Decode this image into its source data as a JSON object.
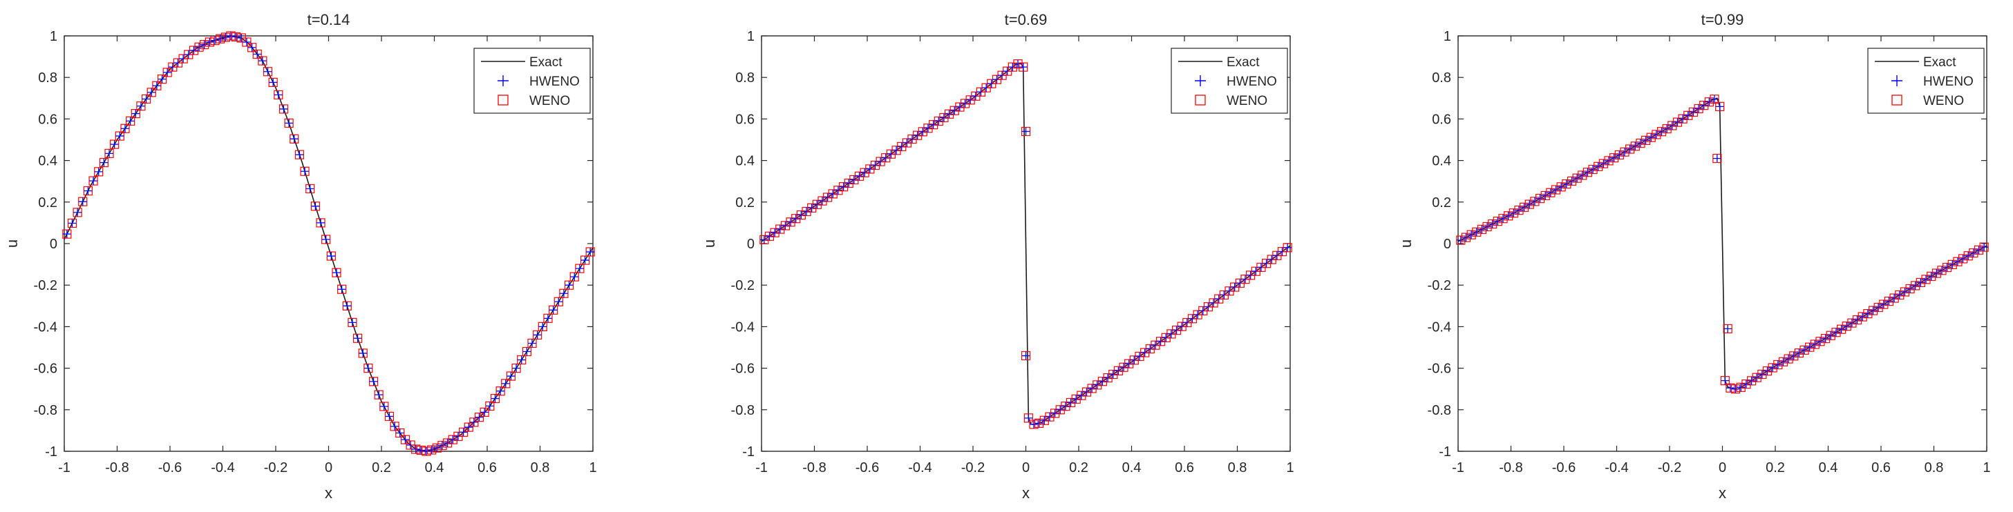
{
  "chart_data": [
    {
      "type": "line",
      "title": "t=0.14",
      "xlabel": "x",
      "ylabel": "u",
      "xlim": [
        -1,
        1
      ],
      "ylim": [
        -1,
        1
      ],
      "xticks": [
        -1,
        -0.8,
        -0.6,
        -0.4,
        -0.2,
        0,
        0.2,
        0.4,
        0.6,
        0.8,
        1
      ],
      "yticks": [
        -1,
        -0.8,
        -0.6,
        -0.4,
        -0.2,
        0,
        0.2,
        0.4,
        0.6,
        0.8,
        1
      ],
      "grid": false,
      "legend_position": "top-right",
      "exact_description": "smooth sine-like wave: min -1 at x≈0.37, max 1 at x≈-0.37",
      "exact_x": [
        -1,
        -0.9,
        -0.8,
        -0.7,
        -0.6,
        -0.5,
        -0.45,
        -0.4,
        -0.37,
        -0.33,
        -0.3,
        -0.25,
        -0.2,
        -0.15,
        -0.1,
        -0.05,
        0,
        0.05,
        0.1,
        0.15,
        0.2,
        0.25,
        0.3,
        0.33,
        0.37,
        0.4,
        0.45,
        0.5,
        0.6,
        0.7,
        0.8,
        0.9,
        1
      ],
      "exact_u": [
        0.02,
        0.28,
        0.5,
        0.68,
        0.84,
        0.94,
        0.97,
        0.99,
        1.0,
        0.99,
        0.96,
        0.88,
        0.75,
        0.58,
        0.39,
        0.18,
        -0.02,
        -0.22,
        -0.42,
        -0.6,
        -0.76,
        -0.88,
        -0.96,
        -0.99,
        -1.0,
        -0.99,
        -0.96,
        -0.92,
        -0.8,
        -0.62,
        -0.42,
        -0.22,
        -0.02
      ],
      "series": [
        {
          "name": "Exact",
          "style": "line",
          "color": "#1a1a1a"
        },
        {
          "name": "HWENO",
          "style": "marker-plus",
          "color": "#0000ff"
        },
        {
          "name": "WENO",
          "style": "marker-square",
          "color": "#ff0000"
        }
      ],
      "marker_count": 100
    },
    {
      "type": "line",
      "title": "t=0.69",
      "xlabel": "x",
      "ylabel": "u",
      "xlim": [
        -1,
        1
      ],
      "ylim": [
        -1,
        1
      ],
      "xticks": [
        -1,
        -0.8,
        -0.6,
        -0.4,
        -0.2,
        0,
        0.2,
        0.4,
        0.6,
        0.8,
        1
      ],
      "yticks": [
        -1,
        -0.8,
        -0.6,
        -0.4,
        -0.2,
        0,
        0.2,
        0.4,
        0.6,
        0.8,
        1
      ],
      "grid": false,
      "legend_position": "top-right",
      "exact_x": [
        -1,
        -0.8,
        -0.6,
        -0.4,
        -0.2,
        -0.04,
        -0.02,
        -0.01,
        0,
        0.01,
        0.02,
        0.04,
        0.06,
        0.2,
        0.4,
        0.6,
        0.8,
        1
      ],
      "exact_u": [
        0.01,
        0.18,
        0.35,
        0.53,
        0.7,
        0.86,
        0.87,
        0.85,
        0.0,
        -0.84,
        -0.87,
        -0.87,
        -0.86,
        -0.74,
        -0.57,
        -0.39,
        -0.2,
        -0.01
      ],
      "special_markers": [
        {
          "x": 0.0,
          "u": 0.54
        },
        {
          "x": 0.0,
          "u": -0.54
        }
      ],
      "series": [
        {
          "name": "Exact",
          "style": "line",
          "color": "#1a1a1a"
        },
        {
          "name": "HWENO",
          "style": "marker-plus",
          "color": "#0000ff"
        },
        {
          "name": "WENO",
          "style": "marker-square",
          "color": "#ff0000"
        }
      ],
      "marker_count": 100
    },
    {
      "type": "line",
      "title": "t=0.99",
      "xlabel": "x",
      "ylabel": "u",
      "xlim": [
        -1,
        1
      ],
      "ylim": [
        -1,
        1
      ],
      "xticks": [
        -1,
        -0.8,
        -0.6,
        -0.4,
        -0.2,
        0,
        0.2,
        0.4,
        0.6,
        0.8,
        1
      ],
      "yticks": [
        -1,
        -0.8,
        -0.6,
        -0.4,
        -0.2,
        0,
        0.2,
        0.4,
        0.6,
        0.8,
        1
      ],
      "grid": false,
      "legend_position": "top-right",
      "exact_x": [
        -1,
        -0.8,
        -0.6,
        -0.4,
        -0.2,
        -0.04,
        -0.02,
        -0.01,
        0,
        0.01,
        0.02,
        0.04,
        0.06,
        0.2,
        0.4,
        0.6,
        0.8,
        1
      ],
      "exact_u": [
        0.01,
        0.14,
        0.28,
        0.42,
        0.56,
        0.69,
        0.7,
        0.66,
        0.0,
        -0.66,
        -0.69,
        -0.7,
        -0.7,
        -0.59,
        -0.45,
        -0.3,
        -0.15,
        -0.01
      ],
      "special_markers": [
        {
          "x": -0.02,
          "u": 0.41
        },
        {
          "x": 0.02,
          "u": -0.41
        }
      ],
      "series": [
        {
          "name": "Exact",
          "style": "line",
          "color": "#1a1a1a"
        },
        {
          "name": "HWENO",
          "style": "marker-plus",
          "color": "#0000ff"
        },
        {
          "name": "WENO",
          "style": "marker-square",
          "color": "#ff0000"
        }
      ],
      "marker_count": 100
    }
  ]
}
